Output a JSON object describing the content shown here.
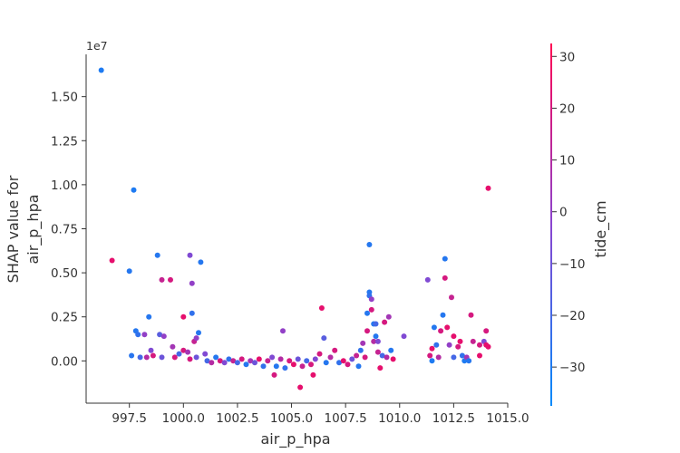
{
  "chart_data": {
    "type": "scatter",
    "xlabel": "air_p_hpa",
    "ylabel": "SHAP value for\nair_p_hpa",
    "y_offset_label": "1e7",
    "colorbar_label": "tide_cm",
    "xlim": [
      995.5,
      1015.0
    ],
    "ylim": [
      -2.4,
      17.4
    ],
    "y_scale_factor": 10000000.0,
    "x_ticks": [
      997.5,
      1000.0,
      1002.5,
      1005.0,
      1007.5,
      1010.0,
      1012.5,
      1015.0
    ],
    "x_tick_labels": [
      "997.5",
      "1000.0",
      "1002.5",
      "1005.0",
      "1007.5",
      "1010.0",
      "1012.5",
      "1015.0"
    ],
    "y_ticks": [
      0.0,
      2.5,
      5.0,
      7.5,
      10.0,
      12.5,
      15.0
    ],
    "y_tick_labels": [
      "0.00",
      "0.25",
      "0.50",
      "0.75",
      "1.00",
      "1.25",
      "1.50"
    ],
    "colorbar_range": [
      -37.5,
      32.5
    ],
    "colorbar_ticks": [
      30,
      20,
      10,
      0,
      -10,
      -20,
      -30
    ],
    "colorbar_tick_labels": [
      "30",
      "20",
      "10",
      "0",
      "−10",
      "−20",
      "−30"
    ],
    "colors": {
      "low": "#008afb",
      "mid": "#8a45d0",
      "high": "#ff0052",
      "axis": "#333333"
    },
    "points": [
      {
        "x": 996.2,
        "y": 16.5,
        "c": -30
      },
      {
        "x": 996.7,
        "y": 5.7,
        "c": 25
      },
      {
        "x": 997.5,
        "y": 5.1,
        "c": -28
      },
      {
        "x": 997.7,
        "y": 9.7,
        "c": -30
      },
      {
        "x": 997.8,
        "y": 1.7,
        "c": -28
      },
      {
        "x": 997.9,
        "y": 1.5,
        "c": -25
      },
      {
        "x": 997.6,
        "y": 0.3,
        "c": -27
      },
      {
        "x": 998.0,
        "y": 0.2,
        "c": -20
      },
      {
        "x": 998.2,
        "y": 1.5,
        "c": 0
      },
      {
        "x": 998.4,
        "y": 2.5,
        "c": -28
      },
      {
        "x": 998.3,
        "y": 0.2,
        "c": 10
      },
      {
        "x": 998.5,
        "y": 0.6,
        "c": -5
      },
      {
        "x": 998.6,
        "y": 0.3,
        "c": 20
      },
      {
        "x": 998.8,
        "y": 6.0,
        "c": -28
      },
      {
        "x": 998.9,
        "y": 1.5,
        "c": -15
      },
      {
        "x": 999.0,
        "y": 4.6,
        "c": 15
      },
      {
        "x": 999.0,
        "y": 0.2,
        "c": -10
      },
      {
        "x": 999.1,
        "y": 1.4,
        "c": 0
      },
      {
        "x": 999.4,
        "y": 4.6,
        "c": 20
      },
      {
        "x": 999.5,
        "y": 0.8,
        "c": 5
      },
      {
        "x": 999.6,
        "y": 0.2,
        "c": 20
      },
      {
        "x": 999.8,
        "y": 0.4,
        "c": -20
      },
      {
        "x": 1000.0,
        "y": 2.5,
        "c": 25
      },
      {
        "x": 1000.0,
        "y": 0.6,
        "c": 20
      },
      {
        "x": 1000.2,
        "y": 0.5,
        "c": 5
      },
      {
        "x": 1000.3,
        "y": 6.0,
        "c": -5
      },
      {
        "x": 1000.4,
        "y": 4.4,
        "c": 0
      },
      {
        "x": 1000.4,
        "y": 2.7,
        "c": -25
      },
      {
        "x": 1000.5,
        "y": 1.1,
        "c": 15
      },
      {
        "x": 1000.6,
        "y": 1.3,
        "c": 0
      },
      {
        "x": 1000.7,
        "y": 1.6,
        "c": -28
      },
      {
        "x": 1000.8,
        "y": 5.6,
        "c": -28
      },
      {
        "x": 1000.3,
        "y": 0.1,
        "c": 20
      },
      {
        "x": 1000.6,
        "y": 0.2,
        "c": -10
      },
      {
        "x": 1001.0,
        "y": 0.4,
        "c": -5
      },
      {
        "x": 1001.1,
        "y": 0.0,
        "c": -20
      },
      {
        "x": 1001.3,
        "y": -0.1,
        "c": 10
      },
      {
        "x": 1001.5,
        "y": 0.2,
        "c": -28
      },
      {
        "x": 1001.7,
        "y": 0.0,
        "c": 20
      },
      {
        "x": 1001.9,
        "y": -0.1,
        "c": -5
      },
      {
        "x": 1002.1,
        "y": 0.1,
        "c": -25
      },
      {
        "x": 1002.3,
        "y": 0.0,
        "c": 15
      },
      {
        "x": 1002.5,
        "y": -0.1,
        "c": -20
      },
      {
        "x": 1002.7,
        "y": 0.1,
        "c": 20
      },
      {
        "x": 1002.9,
        "y": -0.2,
        "c": -28
      },
      {
        "x": 1003.1,
        "y": 0.0,
        "c": 5
      },
      {
        "x": 1003.3,
        "y": -0.1,
        "c": -10
      },
      {
        "x": 1003.5,
        "y": 0.1,
        "c": 25
      },
      {
        "x": 1003.7,
        "y": -0.3,
        "c": -25
      },
      {
        "x": 1003.9,
        "y": 0.0,
        "c": 15
      },
      {
        "x": 1004.1,
        "y": 0.2,
        "c": -5
      },
      {
        "x": 1004.2,
        "y": -0.8,
        "c": 20
      },
      {
        "x": 1004.3,
        "y": -0.3,
        "c": -28
      },
      {
        "x": 1004.5,
        "y": 0.1,
        "c": 10
      },
      {
        "x": 1004.6,
        "y": 1.7,
        "c": 0
      },
      {
        "x": 1004.7,
        "y": -0.4,
        "c": -25
      },
      {
        "x": 1004.9,
        "y": 0.0,
        "c": 20
      },
      {
        "x": 1005.1,
        "y": -0.2,
        "c": 25
      },
      {
        "x": 1005.3,
        "y": 0.1,
        "c": -10
      },
      {
        "x": 1005.4,
        "y": -1.5,
        "c": 25
      },
      {
        "x": 1005.5,
        "y": -0.3,
        "c": 15
      },
      {
        "x": 1005.7,
        "y": 0.0,
        "c": -20
      },
      {
        "x": 1005.9,
        "y": -0.2,
        "c": 20
      },
      {
        "x": 1006.0,
        "y": -0.8,
        "c": 25
      },
      {
        "x": 1006.1,
        "y": 0.1,
        "c": -5
      },
      {
        "x": 1006.3,
        "y": 0.4,
        "c": 20
      },
      {
        "x": 1006.4,
        "y": 3.0,
        "c": 25
      },
      {
        "x": 1006.5,
        "y": 1.3,
        "c": -15
      },
      {
        "x": 1006.6,
        "y": -0.1,
        "c": -28
      },
      {
        "x": 1006.8,
        "y": 0.2,
        "c": 10
      },
      {
        "x": 1007.0,
        "y": 0.6,
        "c": 20
      },
      {
        "x": 1007.2,
        "y": -0.1,
        "c": -25
      },
      {
        "x": 1007.4,
        "y": 0.0,
        "c": 25
      },
      {
        "x": 1007.6,
        "y": -0.2,
        "c": 20
      },
      {
        "x": 1007.8,
        "y": 0.1,
        "c": -10
      },
      {
        "x": 1008.0,
        "y": 0.3,
        "c": 15
      },
      {
        "x": 1008.1,
        "y": -0.3,
        "c": -28
      },
      {
        "x": 1008.2,
        "y": 0.6,
        "c": -25
      },
      {
        "x": 1008.3,
        "y": 1.0,
        "c": 5
      },
      {
        "x": 1008.4,
        "y": 0.2,
        "c": 20
      },
      {
        "x": 1008.5,
        "y": 1.7,
        "c": 20
      },
      {
        "x": 1008.5,
        "y": 2.7,
        "c": -28
      },
      {
        "x": 1008.6,
        "y": 6.6,
        "c": -28
      },
      {
        "x": 1008.6,
        "y": 3.9,
        "c": -28
      },
      {
        "x": 1008.6,
        "y": 3.7,
        "c": -25
      },
      {
        "x": 1008.7,
        "y": 3.5,
        "c": 0
      },
      {
        "x": 1008.7,
        "y": 2.9,
        "c": 20
      },
      {
        "x": 1008.8,
        "y": 2.1,
        "c": -28
      },
      {
        "x": 1008.8,
        "y": 1.1,
        "c": 10
      },
      {
        "x": 1008.9,
        "y": 2.1,
        "c": -20
      },
      {
        "x": 1008.9,
        "y": 1.4,
        "c": -28
      },
      {
        "x": 1009.0,
        "y": 0.5,
        "c": 15
      },
      {
        "x": 1009.0,
        "y": 1.1,
        "c": -5
      },
      {
        "x": 1009.1,
        "y": -0.4,
        "c": 25
      },
      {
        "x": 1009.2,
        "y": 0.3,
        "c": -20
      },
      {
        "x": 1009.3,
        "y": 2.2,
        "c": 20
      },
      {
        "x": 1009.4,
        "y": 0.2,
        "c": 10
      },
      {
        "x": 1009.5,
        "y": 2.5,
        "c": 5
      },
      {
        "x": 1009.6,
        "y": 0.6,
        "c": -28
      },
      {
        "x": 1009.7,
        "y": 0.1,
        "c": 25
      },
      {
        "x": 1010.2,
        "y": 1.4,
        "c": -5
      },
      {
        "x": 1011.3,
        "y": 4.6,
        "c": -5
      },
      {
        "x": 1011.4,
        "y": 0.3,
        "c": 20
      },
      {
        "x": 1011.5,
        "y": 0.7,
        "c": 25
      },
      {
        "x": 1011.6,
        "y": 1.9,
        "c": -28
      },
      {
        "x": 1011.5,
        "y": 0.0,
        "c": -30
      },
      {
        "x": 1011.7,
        "y": 0.9,
        "c": -25
      },
      {
        "x": 1011.8,
        "y": 0.2,
        "c": 10
      },
      {
        "x": 1011.9,
        "y": 1.7,
        "c": 20
      },
      {
        "x": 1012.0,
        "y": 2.6,
        "c": -28
      },
      {
        "x": 1012.1,
        "y": 4.7,
        "c": 20
      },
      {
        "x": 1012.1,
        "y": 5.8,
        "c": -28
      },
      {
        "x": 1012.2,
        "y": 1.9,
        "c": 25
      },
      {
        "x": 1012.3,
        "y": 0.9,
        "c": 0
      },
      {
        "x": 1012.4,
        "y": 3.6,
        "c": 15
      },
      {
        "x": 1012.5,
        "y": 1.4,
        "c": 25
      },
      {
        "x": 1012.5,
        "y": 0.2,
        "c": -20
      },
      {
        "x": 1012.7,
        "y": 0.8,
        "c": 20
      },
      {
        "x": 1012.8,
        "y": 1.1,
        "c": 25
      },
      {
        "x": 1012.9,
        "y": 0.3,
        "c": -25
      },
      {
        "x": 1013.0,
        "y": 0.0,
        "c": -30
      },
      {
        "x": 1013.1,
        "y": 0.2,
        "c": 5
      },
      {
        "x": 1013.2,
        "y": 0.0,
        "c": -28
      },
      {
        "x": 1013.3,
        "y": 2.6,
        "c": 20
      },
      {
        "x": 1013.4,
        "y": 1.1,
        "c": 15
      },
      {
        "x": 1013.7,
        "y": 0.3,
        "c": 25
      },
      {
        "x": 1013.7,
        "y": 0.9,
        "c": 20
      },
      {
        "x": 1013.9,
        "y": 1.1,
        "c": -5
      },
      {
        "x": 1014.0,
        "y": 0.9,
        "c": 25
      },
      {
        "x": 1014.0,
        "y": 1.7,
        "c": 20
      },
      {
        "x": 1014.1,
        "y": 0.8,
        "c": 25
      },
      {
        "x": 1014.1,
        "y": 9.8,
        "c": 25
      }
    ]
  }
}
